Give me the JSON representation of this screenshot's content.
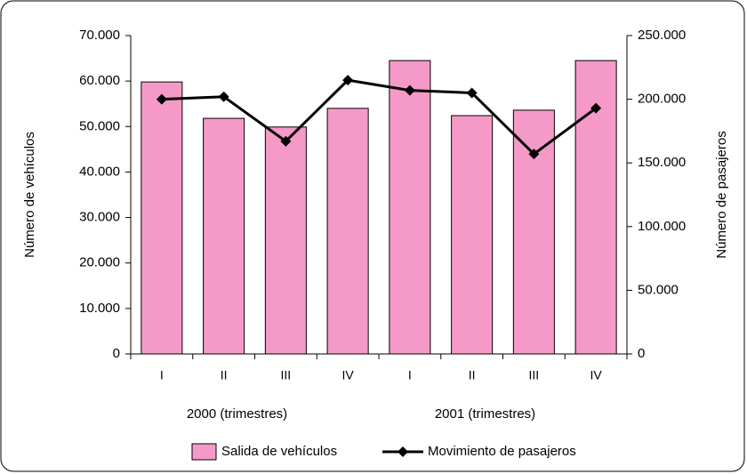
{
  "chart_data": {
    "type": "bar_line",
    "categories": [
      "I",
      "II",
      "III",
      "IV",
      "I",
      "II",
      "III",
      "IV"
    ],
    "x_group_labels": [
      "2000 (trimestres)",
      "2001 (trimestres)"
    ],
    "ylabel": "Número de vehículos",
    "y2label": "Número de pasajeros",
    "ylim": [
      0,
      70000
    ],
    "yticks": [
      0,
      {
        "value": 10000,
        "label": "10.000"
      },
      {
        "value": 20000,
        "label": "20.000"
      },
      {
        "value": 30000,
        "label": "30.000"
      },
      {
        "value": 40000,
        "label": "40.000"
      },
      {
        "value": 50000,
        "label": "50.000"
      },
      {
        "value": 60000,
        "label": "60.000"
      },
      {
        "value": 70000,
        "label": "70.000"
      }
    ],
    "y2lim": [
      0,
      250000
    ],
    "y2ticks": [
      0,
      {
        "value": 50000,
        "label": "50.000"
      },
      {
        "value": 100000,
        "label": "100.000"
      },
      {
        "value": 150000,
        "label": "150.000"
      },
      {
        "value": 200000,
        "label": "200.000"
      },
      {
        "value": 250000,
        "label": "250.000"
      }
    ],
    "legend": "bottom",
    "series": [
      {
        "name": "Salida de vehículos",
        "type": "bar",
        "color": "#f59ac8",
        "values": [
          59800,
          51800,
          49900,
          54000,
          64500,
          52400,
          53600,
          64500
        ]
      },
      {
        "name": "Movimiento de pasajeros",
        "type": "line",
        "axis": "y2",
        "color": "#000000",
        "values": [
          200000,
          202000,
          167000,
          215000,
          207000,
          205000,
          157000,
          193000
        ]
      }
    ]
  }
}
